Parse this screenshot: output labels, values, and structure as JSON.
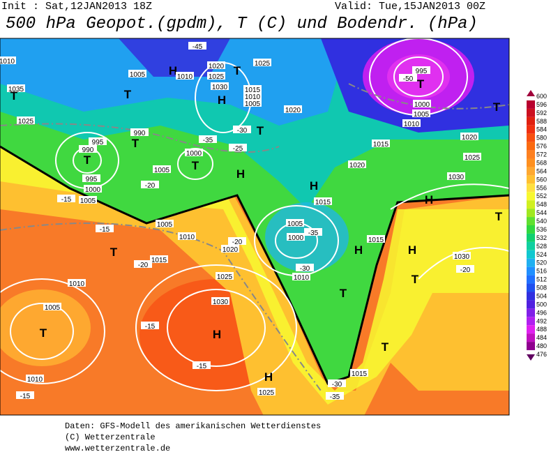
{
  "header": {
    "init": "Init : Sat,12JAN2013 18Z",
    "valid": "Valid: Tue,15JAN2013 00Z",
    "title": "500 hPa Geopot.(gpdm), T (C) und Bodendr. (hPa)"
  },
  "map": {
    "labels": [
      "1010",
      "1005",
      "H",
      "1010",
      "1020",
      "1025",
      "T",
      "1030",
      "H",
      "-45",
      "1025",
      "T",
      "1015",
      "1010",
      "1005",
      "1020",
      "T",
      "995",
      "-50",
      "T",
      "1000",
      "1005",
      "1010",
      "T",
      "1020",
      "1015",
      "1025",
      "1030",
      "H",
      "1020",
      "H",
      "1015",
      "1005",
      "1000",
      "-35",
      "-30",
      "1010",
      "H",
      "1015",
      "H",
      "1030",
      "-20",
      "T",
      "T",
      "T",
      "1015",
      "-30",
      "-35",
      "H",
      "1025",
      "H",
      "1030",
      "1025",
      "1015",
      "1020",
      "-20",
      "1010",
      "1005",
      "T",
      "-15",
      "-20",
      "-15",
      "1005",
      "1000",
      "995",
      "T",
      "990",
      "995",
      "990",
      "T",
      "1000",
      "T",
      "1005",
      "-20",
      "H",
      "-25",
      "-30",
      "-35",
      "1035",
      "T",
      "1005",
      "1010",
      "1010",
      "-15",
      "-15",
      "-15",
      "T",
      "1025",
      "T"
    ]
  },
  "legend": {
    "levels": [
      600,
      596,
      592,
      588,
      584,
      580,
      576,
      572,
      568,
      564,
      560,
      556,
      552,
      548,
      544,
      540,
      536,
      532,
      528,
      524,
      520,
      516,
      512,
      508,
      504,
      500,
      496,
      492,
      488,
      484,
      480,
      476
    ],
    "colors": [
      "#a0003a",
      "#b8002e",
      "#cc1020",
      "#e02010",
      "#f03010",
      "#f85010",
      "#fb6a10",
      "#fd8020",
      "#fe9020",
      "#fea830",
      "#ffc030",
      "#ffe040",
      "#f8f830",
      "#d0f020",
      "#a0e820",
      "#60e030",
      "#30d840",
      "#10d070",
      "#10d0a0",
      "#10c8d0",
      "#20b0f0",
      "#2090ff",
      "#2070ff",
      "#2050f0",
      "#3030e0",
      "#5020e0",
      "#8020e8",
      "#b020f0",
      "#e020f0",
      "#c010c0",
      "#900090",
      "#600060"
    ]
  },
  "footer": [
    "Daten: GFS-Modell des amerikanischen Wetterdienstes",
    "(C) Wetterzentrale",
    "www.wetterzentrale.de"
  ]
}
